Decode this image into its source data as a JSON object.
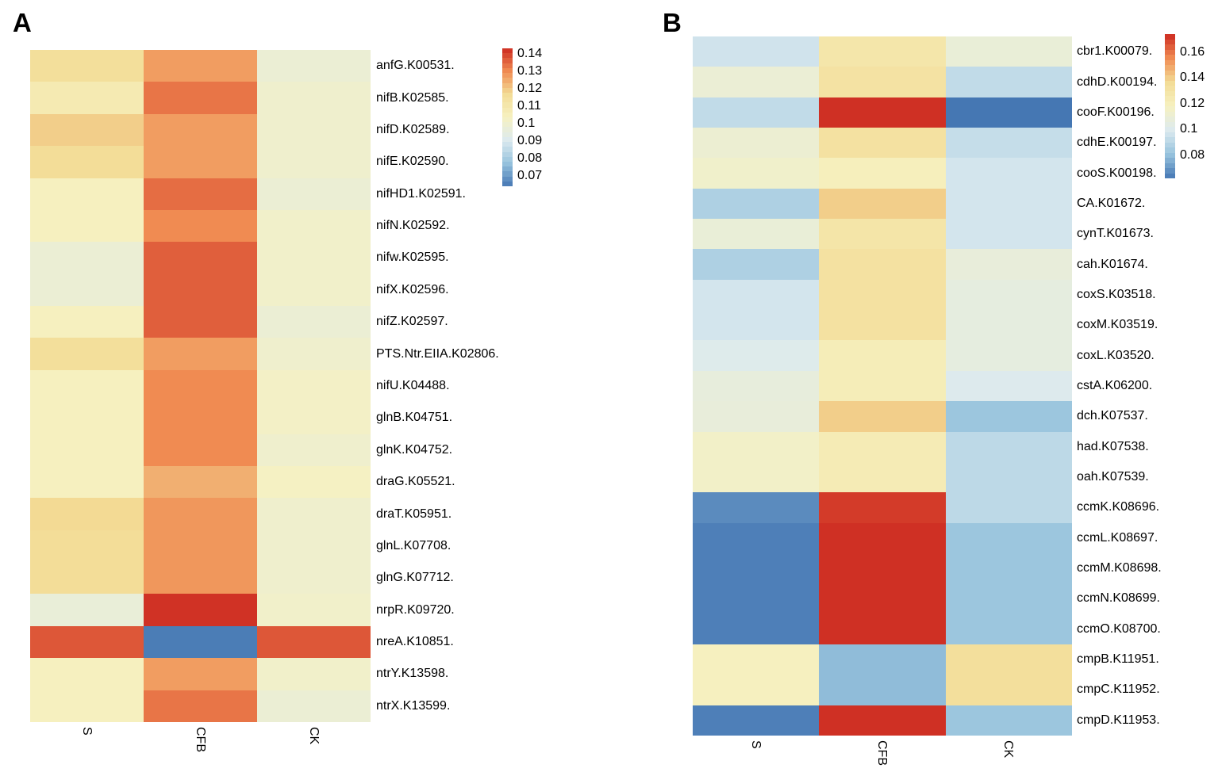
{
  "chart_data": [
    {
      "type": "heatmap",
      "panel_label": "A",
      "columns": [
        "S",
        "CFB",
        "CK"
      ],
      "rows": [
        "anfG.K00531.",
        "nifB.K02585.",
        "nifD.K02589.",
        "nifE.K02590.",
        "nifHD1.K02591.",
        "nifN.K02592.",
        "nifw.K02595.",
        "nifX.K02596.",
        "nifZ.K02597.",
        "PTS.Ntr.EIIA.K02806.",
        "nifU.K04488.",
        "glnB.K04751.",
        "glnK.K04752.",
        "draG.K05521.",
        "draT.K05951.",
        "glnL.K07708.",
        "glnG.K07712.",
        "nrpR.K09720.",
        "nreA.K10851.",
        "ntrY.K13598.",
        "ntrX.K13599."
      ],
      "values": [
        [
          0.115,
          0.127,
          0.098
        ],
        [
          0.108,
          0.133,
          0.1
        ],
        [
          0.119,
          0.127,
          0.1
        ],
        [
          0.116,
          0.127,
          0.1
        ],
        [
          0.104,
          0.134,
          0.098
        ],
        [
          0.104,
          0.13,
          0.101
        ],
        [
          0.098,
          0.136,
          0.101
        ],
        [
          0.098,
          0.136,
          0.101
        ],
        [
          0.104,
          0.136,
          0.098
        ],
        [
          0.115,
          0.127,
          0.1
        ],
        [
          0.104,
          0.13,
          0.102
        ],
        [
          0.104,
          0.13,
          0.102
        ],
        [
          0.104,
          0.13,
          0.1
        ],
        [
          0.104,
          0.124,
          0.103
        ],
        [
          0.117,
          0.128,
          0.1
        ],
        [
          0.116,
          0.128,
          0.1
        ],
        [
          0.116,
          0.128,
          0.1
        ],
        [
          0.097,
          0.142,
          0.101
        ],
        [
          0.137,
          0.065,
          0.137
        ],
        [
          0.104,
          0.127,
          0.101
        ],
        [
          0.104,
          0.133,
          0.098
        ]
      ],
      "colorscale": {
        "name": "RdYlBu-reversed",
        "domain": [
          0.064,
          0.143
        ],
        "anchors": [
          "#4577B3",
          "#97C3DD",
          "#DCEAEF",
          "#F6F1C1",
          "#F3DC96",
          "#F08C53",
          "#CD2B21"
        ],
        "ticks": [
          "0.14",
          "0.13",
          "0.12",
          "0.11",
          "0.1",
          "0.09",
          "0.08",
          "0.07"
        ]
      },
      "legend_position": "right",
      "grid": false
    },
    {
      "type": "heatmap",
      "panel_label": "B",
      "columns": [
        "S",
        "CFB",
        "CK"
      ],
      "rows": [
        "cbr1.K00079.",
        "cdhD.K00194.",
        "cooF.K00196.",
        "cdhE.K00197.",
        "cooS.K00198.",
        "CA.K01672.",
        "cynT.K01673.",
        "cah.K01674.",
        "coxS.K03518.",
        "coxM.K03519.",
        "coxL.K03520.",
        "cstA.K06200.",
        "dch.K07537.",
        "had.K07538.",
        "oah.K07539.",
        "ccmK.K08696.",
        "ccmL.K08697.",
        "ccmM.K08698.",
        "ccmN.K08699.",
        "ccmO.K08700.",
        "cmpB.K11951.",
        "cmpC.K11952.",
        "cmpD.K11953."
      ],
      "values": [
        [
          0.096,
          0.128,
          0.109
        ],
        [
          0.11,
          0.131,
          0.092
        ],
        [
          0.092,
          0.173,
          0.062
        ],
        [
          0.111,
          0.132,
          0.093
        ],
        [
          0.114,
          0.12,
          0.097
        ],
        [
          0.087,
          0.14,
          0.097
        ],
        [
          0.109,
          0.129,
          0.097
        ],
        [
          0.087,
          0.132,
          0.108
        ],
        [
          0.097,
          0.132,
          0.106
        ],
        [
          0.097,
          0.132,
          0.106
        ],
        [
          0.101,
          0.122,
          0.106
        ],
        [
          0.107,
          0.122,
          0.1
        ],
        [
          0.108,
          0.14,
          0.082
        ],
        [
          0.115,
          0.123,
          0.091
        ],
        [
          0.115,
          0.123,
          0.091
        ],
        [
          0.067,
          0.171,
          0.091
        ],
        [
          0.064,
          0.173,
          0.082
        ],
        [
          0.064,
          0.173,
          0.082
        ],
        [
          0.064,
          0.173,
          0.082
        ],
        [
          0.064,
          0.173,
          0.082
        ],
        [
          0.119,
          0.079,
          0.134
        ],
        [
          0.119,
          0.079,
          0.134
        ],
        [
          0.064,
          0.173,
          0.082
        ]
      ],
      "colorscale": {
        "name": "RdYlBu-reversed",
        "domain": [
          0.062,
          0.174
        ],
        "anchors": [
          "#4577B3",
          "#97C3DD",
          "#DCEAEF",
          "#F6F1C1",
          "#F3DC96",
          "#F08C53",
          "#CD2B21"
        ],
        "ticks": [
          "0.16",
          "0.14",
          "0.12",
          "0.1",
          "0.08"
        ]
      },
      "legend_position": "right",
      "grid": false
    }
  ],
  "colors": {
    "background": "#ffffff",
    "text": "#000000"
  }
}
